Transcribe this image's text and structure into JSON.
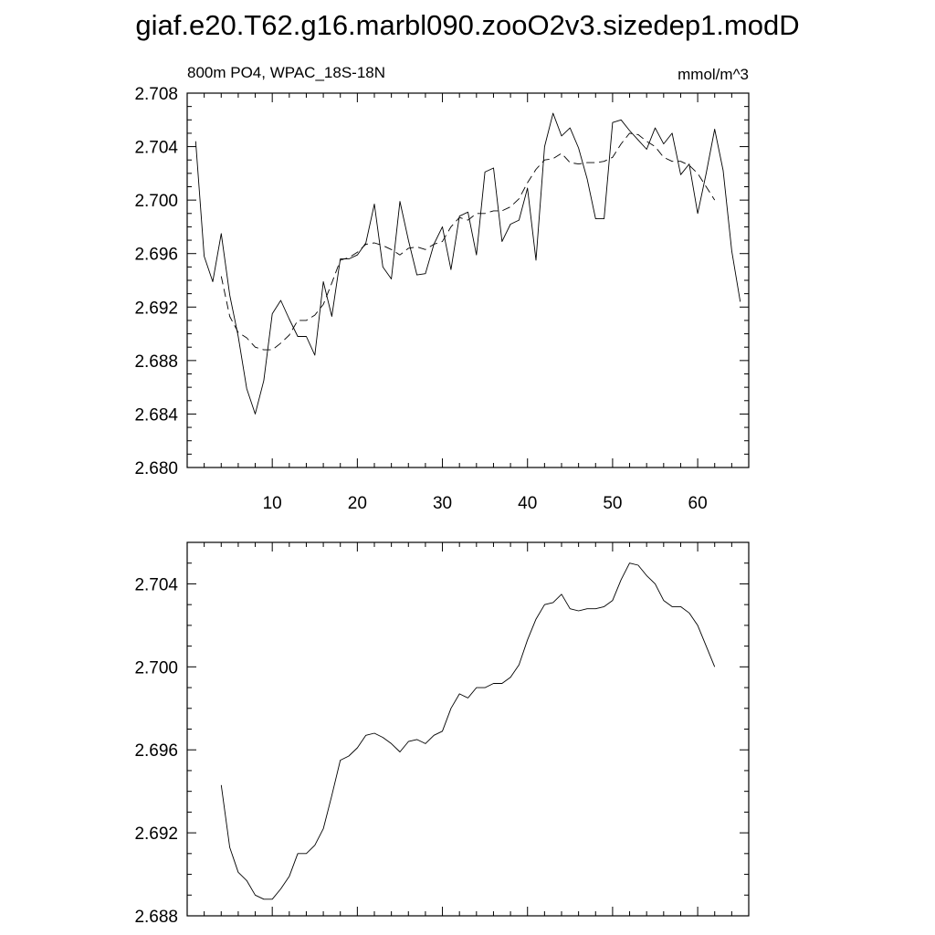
{
  "page_title": "giaf.e20.T62.g16.marbl090.zooO2v3.sizedep1.modD",
  "chart_data": [
    {
      "type": "line",
      "title": "800m PO4, WPAC_18S-18N",
      "units": "mmol/m^3",
      "ylim": [
        2.68,
        2.708
      ],
      "yticks": [
        "2.680",
        "2.684",
        "2.688",
        "2.692",
        "2.696",
        "2.700",
        "2.704",
        "2.708"
      ],
      "xlim": [
        0,
        66
      ],
      "xticks": [
        "10",
        "20",
        "30",
        "40",
        "50",
        "60"
      ],
      "series": [
        {
          "style": "solid",
          "x": [
            1,
            2,
            3,
            4,
            5,
            6,
            7,
            8,
            9,
            10,
            11,
            12,
            13,
            14,
            15,
            16,
            17,
            18,
            19,
            20,
            21,
            22,
            23,
            24,
            25,
            26,
            27,
            28,
            29,
            30,
            31,
            32,
            33,
            34,
            35,
            36,
            37,
            38,
            39,
            40,
            41,
            42,
            43,
            44,
            45,
            46,
            47,
            48,
            49,
            50,
            51,
            52,
            53,
            54,
            55,
            56,
            57,
            58,
            59,
            60,
            61,
            62,
            63,
            64,
            65
          ],
          "values": [
            2.7044,
            2.6958,
            2.6939,
            2.6975,
            2.6929,
            2.6898,
            2.6859,
            2.684,
            2.6865,
            2.6915,
            2.6925,
            2.6911,
            2.6898,
            2.6898,
            2.6884,
            2.6939,
            2.6913,
            2.6956,
            2.6956,
            2.6959,
            2.6968,
            2.6997,
            2.695,
            2.6941,
            2.6999,
            2.697,
            2.6944,
            2.6945,
            2.6967,
            2.698,
            2.6948,
            2.6988,
            2.6991,
            2.6959,
            2.7021,
            2.7024,
            2.6969,
            2.6982,
            2.6985,
            2.7009,
            2.6955,
            2.704,
            2.7065,
            2.7048,
            2.7054,
            2.7039,
            2.7016,
            2.6986,
            2.6986,
            2.7058,
            2.706,
            2.7052,
            2.7045,
            2.7038,
            2.7054,
            2.7042,
            2.705,
            2.7019,
            2.7027,
            2.699,
            2.702,
            2.7053,
            2.7022,
            2.6962,
            2.6924
          ]
        },
        {
          "style": "dashed",
          "x": [
            4,
            5,
            6,
            7,
            8,
            9,
            10,
            11,
            12,
            13,
            14,
            15,
            16,
            17,
            18,
            19,
            20,
            21,
            22,
            23,
            24,
            25,
            26,
            27,
            28,
            29,
            30,
            31,
            32,
            33,
            34,
            35,
            36,
            37,
            38,
            39,
            40,
            41,
            42,
            43,
            44,
            45,
            46,
            47,
            48,
            49,
            50,
            51,
            52,
            53,
            54,
            55,
            56,
            57,
            58,
            59,
            60,
            61,
            62
          ],
          "values": [
            2.6943,
            2.6913,
            2.6901,
            2.6897,
            2.689,
            2.6888,
            2.6888,
            2.6893,
            2.6899,
            2.691,
            2.691,
            2.6914,
            2.6922,
            2.6938,
            2.6955,
            2.6957,
            2.6961,
            2.6967,
            2.6968,
            2.6966,
            2.6963,
            2.6959,
            2.6964,
            2.6965,
            2.6963,
            2.6967,
            2.6969,
            2.698,
            2.6987,
            2.6985,
            2.699,
            2.699,
            2.6992,
            2.6992,
            2.6995,
            2.7001,
            2.7013,
            2.7023,
            2.703,
            2.7031,
            2.7035,
            2.7028,
            2.7027,
            2.7028,
            2.7028,
            2.7029,
            2.7032,
            2.7042,
            2.705,
            2.7049,
            2.7044,
            2.704,
            2.7032,
            2.7029,
            2.7029,
            2.7026,
            2.702,
            2.701,
            2.7
          ]
        }
      ]
    },
    {
      "type": "line",
      "ylim": [
        2.688,
        2.706
      ],
      "yticks": [
        "2.688",
        "2.692",
        "2.696",
        "2.700",
        "2.704"
      ],
      "xlim": [
        0,
        66
      ],
      "series": [
        {
          "style": "solid",
          "x": [
            4,
            5,
            6,
            7,
            8,
            9,
            10,
            11,
            12,
            13,
            14,
            15,
            16,
            17,
            18,
            19,
            20,
            21,
            22,
            23,
            24,
            25,
            26,
            27,
            28,
            29,
            30,
            31,
            32,
            33,
            34,
            35,
            36,
            37,
            38,
            39,
            40,
            41,
            42,
            43,
            44,
            45,
            46,
            47,
            48,
            49,
            50,
            51,
            52,
            53,
            54,
            55,
            56,
            57,
            58,
            59,
            60,
            61,
            62
          ],
          "values": [
            2.6943,
            2.6913,
            2.6901,
            2.6897,
            2.689,
            2.6888,
            2.6888,
            2.6893,
            2.6899,
            2.691,
            2.691,
            2.6914,
            2.6922,
            2.6938,
            2.6955,
            2.6957,
            2.6961,
            2.6967,
            2.6968,
            2.6966,
            2.6963,
            2.6959,
            2.6964,
            2.6965,
            2.6963,
            2.6967,
            2.6969,
            2.698,
            2.6987,
            2.6985,
            2.699,
            2.699,
            2.6992,
            2.6992,
            2.6995,
            2.7001,
            2.7013,
            2.7023,
            2.703,
            2.7031,
            2.7035,
            2.7028,
            2.7027,
            2.7028,
            2.7028,
            2.7029,
            2.7032,
            2.7042,
            2.705,
            2.7049,
            2.7044,
            2.704,
            2.7032,
            2.7029,
            2.7029,
            2.7026,
            2.702,
            2.701,
            2.7
          ]
        }
      ]
    }
  ]
}
